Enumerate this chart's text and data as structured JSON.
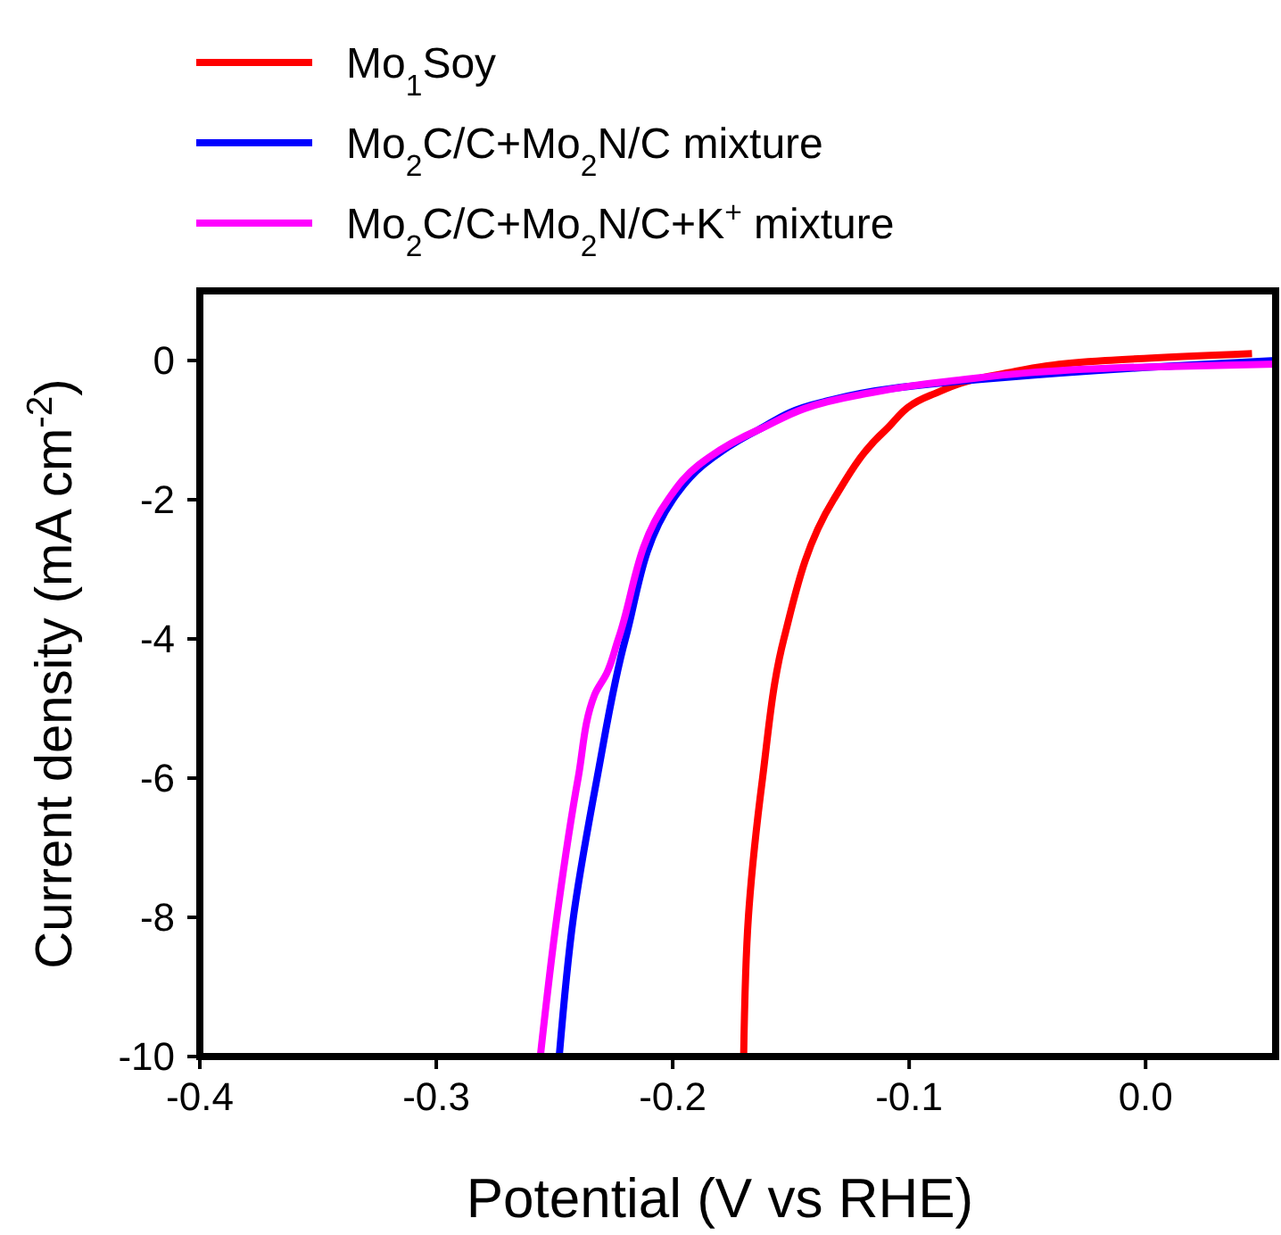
{
  "chart_data": {
    "type": "line",
    "xlabel": "Potential (V vs RHE)",
    "ylabel": "Current density (mA cm$^{-2}$)",
    "xlim": [
      -0.4,
      0.055
    ],
    "ylim": [
      -10,
      1
    ],
    "xticks": [
      -0.4,
      -0.3,
      -0.2,
      -0.1,
      {
        "value": 0,
        "label": "0.0"
      }
    ],
    "yticks": [
      -10,
      -8,
      -6,
      -4,
      -2,
      0
    ],
    "legend": "top left",
    "grid": false,
    "marker": "none",
    "line_style": "solid",
    "series": [
      {
        "name": "Mo$_{1}$Soy",
        "color": "#ff0000",
        "x": [
          -0.17,
          -0.168,
          -0.162,
          -0.153,
          -0.132,
          -0.11,
          -0.091,
          -0.062,
          -0.017,
          0.045
        ],
        "values": [
          -10,
          -8,
          -6,
          -4,
          -2,
          -1,
          -0.5,
          -0.2,
          0,
          0.1
        ]
      },
      {
        "name": "Mo$_{2}$C/C+Mo$_{2}$N/C mixture",
        "color": "#0000ff",
        "x": [
          -0.248,
          -0.242,
          -0.232,
          -0.22,
          -0.2,
          -0.187,
          -0.164,
          -0.137,
          -0.107,
          -0.062,
          0,
          0.055
        ],
        "values": [
          -10,
          -8,
          -6,
          -4,
          -2,
          -1.5,
          -1,
          -0.6,
          -0.4,
          -0.25,
          -0.1,
          0
        ]
      },
      {
        "name": "Mo$_{2}$C/C+Mo$_{2}$N/C+K$^{+}$ mixture",
        "color": "#ff00ff",
        "x": [
          -0.256,
          -0.249,
          -0.24,
          -0.233,
          -0.228,
          -0.223,
          -0.202,
          -0.189,
          -0.164,
          -0.122,
          -0.084,
          -0.008,
          0.055
        ],
        "values": [
          -10,
          -8,
          -6,
          -4.8,
          -4.5,
          -4,
          -2,
          -1.5,
          -1,
          -0.5,
          -0.3,
          -0.1,
          -0.05
        ]
      }
    ]
  }
}
